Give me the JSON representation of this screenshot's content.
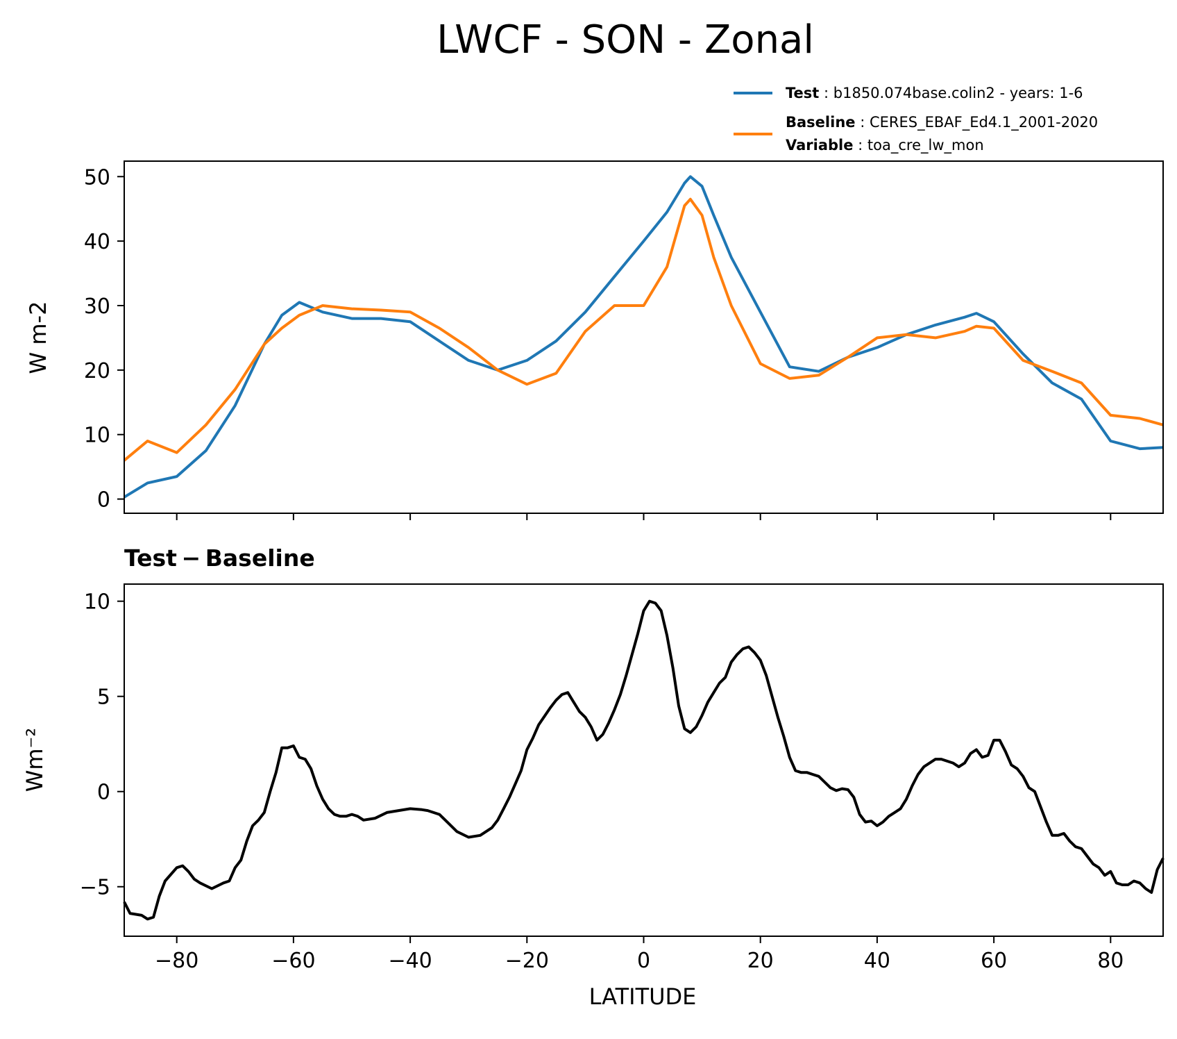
{
  "chart_data": [
    {
      "type": "line",
      "suptitle": "LWCF - SON - Zonal",
      "ylabel": "W m-2",
      "xlim": [
        -89,
        89
      ],
      "ylim": [
        -2.2,
        52.4
      ],
      "xticks": [
        -80,
        -60,
        -40,
        -20,
        0,
        20,
        40,
        60,
        80
      ],
      "xtick_labels_shown": false,
      "yticks": [
        0,
        10,
        20,
        30,
        40,
        50
      ],
      "ytick_labels": [
        "0",
        "10",
        "20",
        "30",
        "40",
        "50"
      ],
      "legend": {
        "placement": "upper-right-outside",
        "entries": [
          {
            "key": "Test",
            "text": "b1850.074base.colin2 - years: 1-6",
            "color": "#1f77b4"
          },
          {
            "key": "Baseline",
            "text": "CERES_EBAF_Ed4.1_2001-2020",
            "key2": "Variable",
            "text2": "toa_cre_lw_mon",
            "color": "#ff7f0e"
          }
        ]
      },
      "x": [
        -89,
        -85,
        -80,
        -75,
        -70,
        -65,
        -62,
        -59,
        -55,
        -50,
        -45,
        -40,
        -35,
        -30,
        -25,
        -20,
        -15,
        -10,
        -5,
        0,
        4,
        7,
        8,
        10,
        12,
        15,
        20,
        25,
        30,
        35,
        40,
        45,
        50,
        55,
        57,
        60,
        65,
        70,
        75,
        80,
        85,
        89
      ],
      "series": [
        {
          "name": "Test",
          "color": "#1f77b4",
          "values": [
            0.3,
            2.5,
            3.5,
            7.5,
            14.5,
            24.0,
            28.5,
            30.5,
            29.0,
            28.0,
            28.0,
            27.5,
            24.5,
            21.5,
            20.0,
            21.5,
            24.5,
            29.0,
            34.5,
            40.0,
            44.5,
            49.0,
            50.0,
            48.5,
            44.0,
            37.5,
            29.0,
            20.5,
            19.8,
            22.0,
            23.5,
            25.5,
            27.0,
            28.2,
            28.8,
            27.5,
            22.5,
            18.0,
            15.5,
            9.0,
            7.8,
            8.0
          ]
        },
        {
          "name": "Baseline",
          "color": "#ff7f0e",
          "values": [
            6.0,
            9.0,
            7.2,
            11.5,
            17.0,
            24.0,
            26.5,
            28.5,
            30.0,
            29.5,
            29.3,
            29.0,
            26.5,
            23.5,
            20.0,
            17.8,
            19.5,
            26.0,
            30.0,
            30.0,
            36.0,
            45.5,
            46.5,
            44.0,
            37.5,
            30.0,
            21.0,
            18.7,
            19.2,
            22.0,
            25.0,
            25.5,
            25.0,
            26.0,
            26.8,
            26.5,
            21.5,
            19.8,
            18.0,
            13.0,
            12.5,
            11.5
          ]
        }
      ]
    },
    {
      "type": "line",
      "title": "Test − Baseline",
      "xlabel": "LATITUDE",
      "ylabel": "Wm⁻²",
      "xlim": [
        -89,
        89
      ],
      "ylim": [
        -7.6,
        10.9
      ],
      "xticks": [
        -80,
        -60,
        -40,
        -20,
        0,
        20,
        40,
        60,
        80
      ],
      "xtick_labels": [
        "−80",
        "−60",
        "−40",
        "−20",
        "0",
        "20",
        "40",
        "60",
        "80"
      ],
      "yticks": [
        -5,
        0,
        5,
        10
      ],
      "ytick_labels": [
        "−5",
        "0",
        "5",
        "10"
      ],
      "x": [
        -89,
        -88,
        -86,
        -85,
        -84,
        -83,
        -82,
        -80,
        -79,
        -78,
        -77,
        -76,
        -74,
        -72,
        -71,
        -70,
        -69,
        -68,
        -67,
        -66,
        -65,
        -64,
        -63,
        -62,
        -61,
        -60,
        -59,
        -58,
        -57,
        -56,
        -55,
        -54,
        -53,
        -52,
        -51,
        -50,
        -49,
        -48,
        -46,
        -44,
        -42,
        -40,
        -38,
        -37,
        -35,
        -34,
        -32,
        -30,
        -28,
        -27,
        -26,
        -25,
        -24,
        -23,
        -22,
        -21,
        -20,
        -19,
        -18,
        -16,
        -15,
        -14,
        -13,
        -12,
        -11,
        -10,
        -9,
        -8,
        -7,
        -6,
        -5,
        -4,
        -3,
        -2,
        -1,
        0,
        1,
        2,
        3,
        4,
        5,
        6,
        7,
        8,
        9,
        10,
        11,
        12,
        13,
        14,
        15,
        16,
        17,
        18,
        19,
        20,
        21,
        22,
        23,
        24,
        25,
        26,
        27,
        28,
        29,
        30,
        31,
        32,
        33,
        34,
        35,
        36,
        37,
        38,
        39,
        40,
        41,
        42,
        43,
        44,
        45,
        46,
        47,
        48,
        49,
        50,
        51,
        52,
        53,
        54,
        55,
        56,
        57,
        58,
        59,
        60,
        61,
        62,
        63,
        64,
        65,
        66,
        67,
        68,
        69,
        70,
        71,
        72,
        73,
        74,
        75,
        76,
        77,
        78,
        79,
        80,
        81,
        82,
        83,
        84,
        85,
        86,
        87,
        88,
        89
      ],
      "values": [
        -5.8,
        -6.4,
        -6.5,
        -6.7,
        -6.6,
        -5.5,
        -4.7,
        -4.0,
        -3.9,
        -4.2,
        -4.6,
        -4.8,
        -5.1,
        -4.8,
        -4.7,
        -4.0,
        -3.6,
        -2.6,
        -1.8,
        -1.5,
        -1.1,
        0.0,
        1.0,
        2.3,
        2.3,
        2.4,
        1.8,
        1.7,
        1.2,
        0.3,
        -0.4,
        -0.9,
        -1.2,
        -1.3,
        -1.3,
        -1.2,
        -1.3,
        -1.5,
        -1.4,
        -1.1,
        -1.0,
        -0.9,
        -0.95,
        -1.0,
        -1.2,
        -1.5,
        -2.1,
        -2.4,
        -2.3,
        -2.1,
        -1.9,
        -1.5,
        -0.9,
        -0.3,
        0.4,
        1.1,
        2.2,
        2.8,
        3.5,
        4.4,
        4.8,
        5.1,
        5.2,
        4.7,
        4.2,
        3.9,
        3.4,
        2.7,
        3.0,
        3.6,
        4.3,
        5.1,
        6.1,
        7.2,
        8.3,
        9.5,
        10.0,
        9.9,
        9.5,
        8.2,
        6.5,
        4.5,
        3.3,
        3.1,
        3.4,
        4.0,
        4.7,
        5.2,
        5.7,
        6.0,
        6.8,
        7.2,
        7.5,
        7.6,
        7.3,
        6.9,
        6.1,
        5.0,
        3.9,
        2.9,
        1.8,
        1.1,
        1.0,
        1.0,
        0.9,
        0.8,
        0.5,
        0.2,
        0.05,
        0.15,
        0.1,
        -0.3,
        -1.2,
        -1.6,
        -1.55,
        -1.8,
        -1.6,
        -1.3,
        -1.1,
        -0.9,
        -0.4,
        0.3,
        0.9,
        1.3,
        1.5,
        1.7,
        1.7,
        1.6,
        1.5,
        1.3,
        1.5,
        2.0,
        2.2,
        1.8,
        1.9,
        2.7,
        2.7,
        2.1,
        1.4,
        1.2,
        0.8,
        0.2,
        0.0,
        -0.8,
        -1.6,
        -2.3,
        -2.3,
        -2.2,
        -2.6,
        -2.9,
        -3.0,
        -3.4,
        -3.8,
        -4.0,
        -4.4,
        -4.2,
        -4.8,
        -4.9,
        -4.9,
        -4.7,
        -4.8,
        -5.1,
        -5.3,
        -4.1,
        -3.5
      ],
      "color": "#000000"
    }
  ]
}
